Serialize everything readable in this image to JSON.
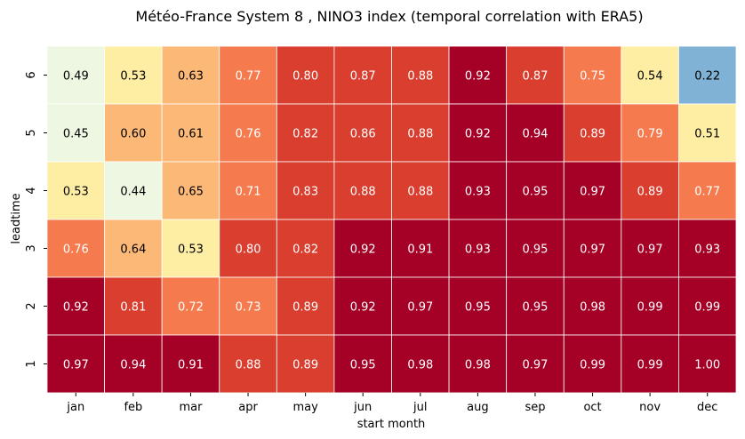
{
  "chart_data": {
    "type": "heatmap",
    "title": "Météo-France System 8 , NINO3 index (temporal correlation with ERA5)",
    "xlabel": "start month",
    "ylabel": "leadtime",
    "x_categories": [
      "jan",
      "feb",
      "mar",
      "apr",
      "may",
      "jun",
      "jul",
      "aug",
      "sep",
      "oct",
      "nov",
      "dec"
    ],
    "y_categories": [
      "6",
      "5",
      "4",
      "3",
      "2",
      "1"
    ],
    "values": [
      [
        0.49,
        0.53,
        0.63,
        0.77,
        0.8,
        0.87,
        0.88,
        0.92,
        0.87,
        0.75,
        0.54,
        0.22
      ],
      [
        0.45,
        0.6,
        0.61,
        0.76,
        0.82,
        0.86,
        0.88,
        0.92,
        0.94,
        0.89,
        0.79,
        0.51
      ],
      [
        0.53,
        0.44,
        0.65,
        0.71,
        0.83,
        0.88,
        0.88,
        0.93,
        0.95,
        0.97,
        0.89,
        0.77
      ],
      [
        0.76,
        0.64,
        0.53,
        0.8,
        0.82,
        0.92,
        0.91,
        0.93,
        0.95,
        0.97,
        0.97,
        0.93
      ],
      [
        0.92,
        0.81,
        0.72,
        0.73,
        0.89,
        0.92,
        0.97,
        0.95,
        0.95,
        0.98,
        0.99,
        0.99
      ],
      [
        0.97,
        0.94,
        0.91,
        0.88,
        0.89,
        0.95,
        0.98,
        0.98,
        0.97,
        0.99,
        0.99,
        1.0
      ]
    ],
    "colormap": "RdYlBu_r (discrete)",
    "color_bins": [
      {
        "min": 0.0,
        "max": 0.3,
        "color": "#7fb2d5",
        "text_color": "#000000"
      },
      {
        "min": 0.3,
        "max": 0.5,
        "color": "#eef7e2",
        "text_color": "#000000"
      },
      {
        "min": 0.5,
        "max": 0.6,
        "color": "#feeea4",
        "text_color": "#000000"
      },
      {
        "min": 0.6,
        "max": 0.7,
        "color": "#fcb877",
        "text_color": "#000000"
      },
      {
        "min": 0.7,
        "max": 0.8,
        "color": "#f57b4e",
        "text_color": "#ffffff"
      },
      {
        "min": 0.8,
        "max": 0.9,
        "color": "#d93e2f",
        "text_color": "#ffffff"
      },
      {
        "min": 0.9,
        "max": 1.01,
        "color": "#a50026",
        "text_color": "#ffffff"
      }
    ],
    "value_format": "2 decimals",
    "grid_lines": "white cell borders"
  }
}
